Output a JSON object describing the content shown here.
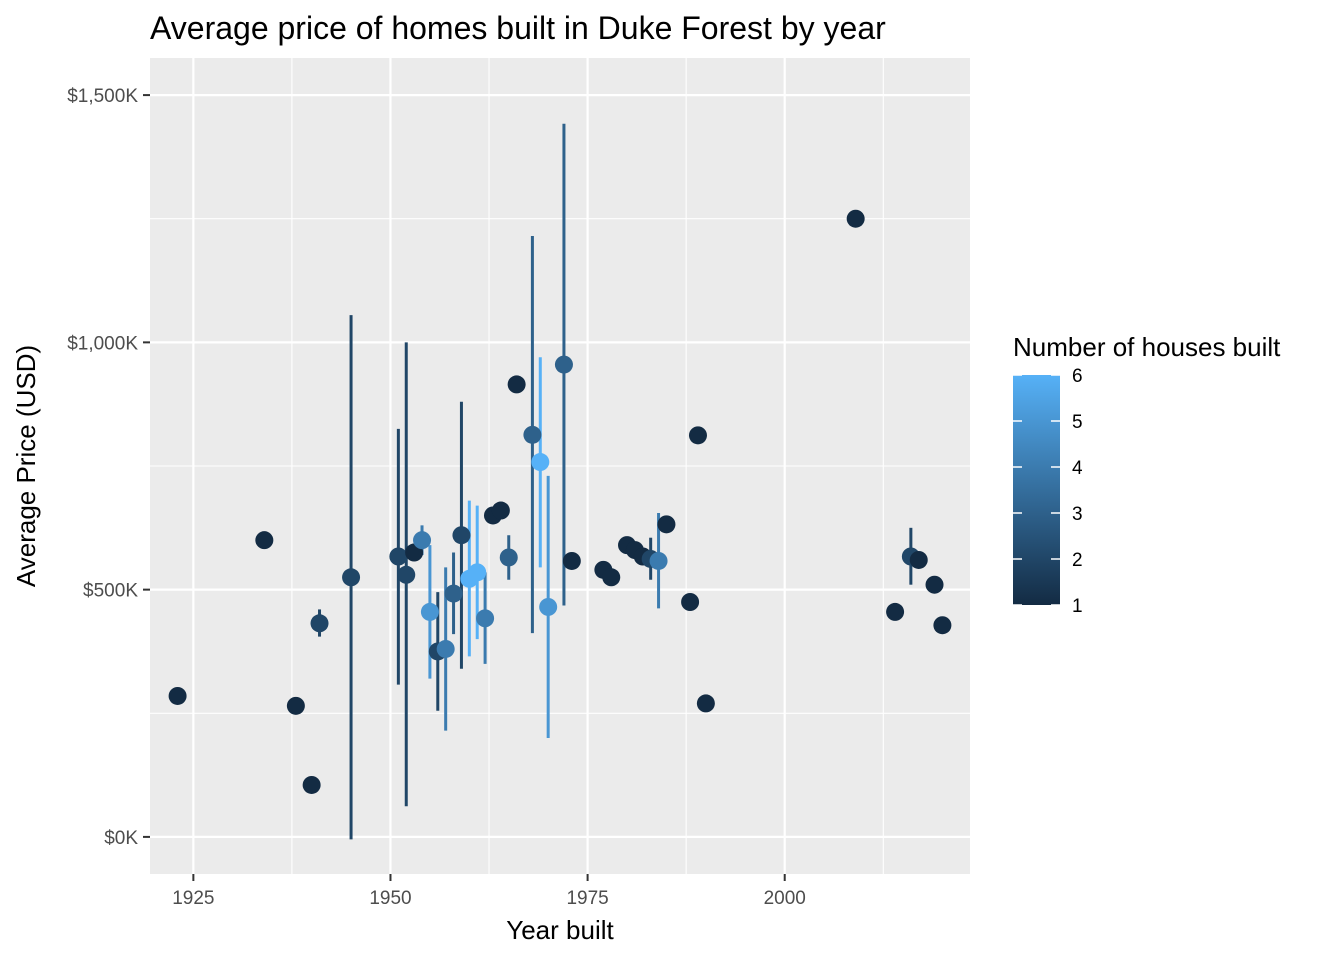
{
  "chart_data": {
    "type": "scatter",
    "title": "Average price of homes built in Duke Forest by year",
    "xlabel": "Year built",
    "ylabel": "Average Price (USD)",
    "xlim": [
      1919.5,
      2023.5
    ],
    "ylim": [
      -75,
      1575
    ],
    "x_ticks": [
      1925,
      1950,
      1975,
      2000
    ],
    "x_tick_labels": [
      "1925",
      "1950",
      "1975",
      "2000"
    ],
    "y_ticks": [
      0,
      500,
      1000,
      1500
    ],
    "y_tick_labels": [
      "$0K",
      "$500K",
      "$1,000K",
      "$1,500K"
    ],
    "y_unit": "thousands USD",
    "grid": true,
    "legend": {
      "title": "Number of houses built",
      "placement": "right",
      "type": "colorbar",
      "min": 1,
      "max": 6,
      "ticks": [
        1,
        2,
        3,
        4,
        5,
        6
      ],
      "tick_labels": [
        "1",
        "2",
        "3",
        "4",
        "5",
        "6"
      ],
      "color_low": "#132B43",
      "color_high": "#56B1F7"
    },
    "colors": {
      "panel": "#EBEBEB",
      "grid": "#FFFFFF",
      "errorbar_low": "#132B43",
      "errorbar_high": "#56B1F7"
    },
    "points": [
      {
        "year": 1923,
        "avg": 285,
        "n": 1
      },
      {
        "year": 1934,
        "avg": 600,
        "n": 1
      },
      {
        "year": 1938,
        "avg": 265,
        "n": 1
      },
      {
        "year": 1940,
        "avg": 105,
        "n": 1
      },
      {
        "year": 1941,
        "avg": 432,
        "n": 2,
        "low": 405,
        "high": 460
      },
      {
        "year": 1945,
        "avg": 525,
        "n": 2,
        "low": -5,
        "high": 1055
      },
      {
        "year": 1951,
        "avg": 567,
        "n": 2,
        "low": 308,
        "high": 825
      },
      {
        "year": 1952,
        "avg": 530,
        "n": 2,
        "low": 62,
        "high": 1000
      },
      {
        "year": 1953,
        "avg": 575,
        "n": 1
      },
      {
        "year": 1954,
        "avg": 600,
        "n": 4,
        "low": 570,
        "high": 630
      },
      {
        "year": 1955,
        "avg": 455,
        "n": 5,
        "low": 320,
        "high": 590
      },
      {
        "year": 1956,
        "avg": 375,
        "n": 2,
        "low": 255,
        "high": 495
      },
      {
        "year": 1957,
        "avg": 380,
        "n": 4,
        "low": 215,
        "high": 545
      },
      {
        "year": 1958,
        "avg": 492,
        "n": 3,
        "low": 410,
        "high": 575
      },
      {
        "year": 1959,
        "avg": 610,
        "n": 2,
        "low": 340,
        "high": 880
      },
      {
        "year": 1960,
        "avg": 522,
        "n": 6,
        "low": 365,
        "high": 680
      },
      {
        "year": 1961,
        "avg": 535,
        "n": 6,
        "low": 400,
        "high": 670
      },
      {
        "year": 1962,
        "avg": 442,
        "n": 4,
        "low": 350,
        "high": 535
      },
      {
        "year": 1963,
        "avg": 650,
        "n": 1
      },
      {
        "year": 1964,
        "avg": 660,
        "n": 1
      },
      {
        "year": 1965,
        "avg": 565,
        "n": 3,
        "low": 520,
        "high": 610
      },
      {
        "year": 1966,
        "avg": 915,
        "n": 1
      },
      {
        "year": 1968,
        "avg": 813,
        "n": 3,
        "low": 412,
        "high": 1215
      },
      {
        "year": 1969,
        "avg": 758,
        "n": 6,
        "low": 545,
        "high": 970
      },
      {
        "year": 1970,
        "avg": 465,
        "n": 5,
        "low": 200,
        "high": 730
      },
      {
        "year": 1972,
        "avg": 955,
        "n": 3,
        "low": 468,
        "high": 1442
      },
      {
        "year": 1973,
        "avg": 558,
        "n": 1
      },
      {
        "year": 1977,
        "avg": 540,
        "n": 1
      },
      {
        "year": 1978,
        "avg": 525,
        "n": 1
      },
      {
        "year": 1980,
        "avg": 590,
        "n": 1
      },
      {
        "year": 1981,
        "avg": 580,
        "n": 1
      },
      {
        "year": 1982,
        "avg": 567,
        "n": 1
      },
      {
        "year": 1983,
        "avg": 562,
        "n": 2,
        "low": 520,
        "high": 605
      },
      {
        "year": 1984,
        "avg": 558,
        "n": 4,
        "low": 462,
        "high": 655
      },
      {
        "year": 1985,
        "avg": 632,
        "n": 1
      },
      {
        "year": 1988,
        "avg": 475,
        "n": 1
      },
      {
        "year": 1989,
        "avg": 812,
        "n": 1
      },
      {
        "year": 1990,
        "avg": 270,
        "n": 1
      },
      {
        "year": 2009,
        "avg": 1250,
        "n": 1
      },
      {
        "year": 2014,
        "avg": 455,
        "n": 1
      },
      {
        "year": 2016,
        "avg": 567,
        "n": 2,
        "low": 510,
        "high": 625
      },
      {
        "year": 2017,
        "avg": 560,
        "n": 1
      },
      {
        "year": 2019,
        "avg": 510,
        "n": 1
      },
      {
        "year": 2020,
        "avg": 428,
        "n": 1
      }
    ]
  }
}
